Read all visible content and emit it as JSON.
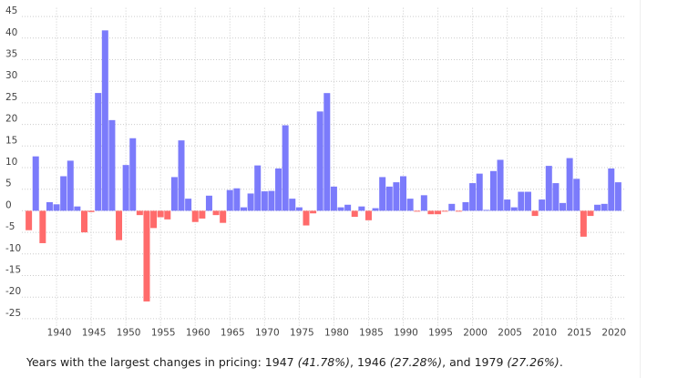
{
  "chart_data": {
    "type": "bar",
    "x": [
      1936,
      1937,
      1938,
      1939,
      1940,
      1941,
      1942,
      1943,
      1944,
      1945,
      1946,
      1947,
      1948,
      1949,
      1950,
      1951,
      1952,
      1953,
      1954,
      1955,
      1956,
      1957,
      1958,
      1959,
      1960,
      1961,
      1962,
      1963,
      1964,
      1965,
      1966,
      1967,
      1968,
      1969,
      1970,
      1971,
      1972,
      1973,
      1974,
      1975,
      1976,
      1977,
      1978,
      1979,
      1980,
      1981,
      1982,
      1983,
      1984,
      1985,
      1986,
      1987,
      1988,
      1989,
      1990,
      1991,
      1992,
      1993,
      1994,
      1995,
      1996,
      1997,
      1998,
      1999,
      2000,
      2001,
      2002,
      2003,
      2004,
      2005,
      2006,
      2007,
      2008,
      2009,
      2010,
      2011,
      2012,
      2013,
      2014,
      2015,
      2016,
      2017,
      2018,
      2019,
      2020,
      2021
    ],
    "values": [
      -4.5,
      12.6,
      -7.5,
      2,
      1.5,
      8,
      11.6,
      1,
      -5,
      -0.3,
      27.28,
      41.78,
      21,
      -6.8,
      10.6,
      16.8,
      -1,
      -21,
      -4,
      -1.5,
      -2,
      7.8,
      16.3,
      2.8,
      -2.6,
      -1.8,
      3.5,
      -1,
      -2.8,
      4.8,
      5.2,
      0.8,
      4,
      10.5,
      4.5,
      4.6,
      9.8,
      19.8,
      2.8,
      0.8,
      -3.4,
      -0.6,
      23,
      27.26,
      5.6,
      0.8,
      1.4,
      -1.4,
      1,
      -2.2,
      0.6,
      7.8,
      5.6,
      6.6,
      8,
      2.8,
      -0.2,
      3.6,
      -0.8,
      -0.8,
      -0.2,
      1.6,
      -0.2,
      2,
      6.4,
      8.6,
      0.2,
      9.2,
      11.8,
      2.6,
      0.8,
      4.4,
      4.4,
      -1.2,
      2.6,
      10.4,
      6.4,
      1.8,
      12.2,
      7.4,
      -6,
      -1.2,
      1.4,
      1.6,
      9.8,
      6.6
    ],
    "color": "#7b7bfb",
    "negative_color": "#ff6b6b",
    "xlim": [
      1935,
      2022
    ],
    "xticks": [
      1940,
      1945,
      1950,
      1955,
      1960,
      1965,
      1970,
      1975,
      1980,
      1985,
      1990,
      1995,
      2000,
      2005,
      2010,
      2015,
      2020
    ],
    "ylim": [
      -27,
      47
    ],
    "yticks": [
      45,
      40,
      35,
      30,
      25,
      20,
      15,
      10,
      5,
      0,
      -5,
      -10,
      -15,
      -20,
      -25
    ],
    "grid": true,
    "caption": [
      {
        "text": "Years with the largest changes in pricing: 1947 "
      },
      {
        "text": "(41.78%)",
        "italic": true
      },
      {
        "text": ", 1946 "
      },
      {
        "text": "(27.28%)",
        "italic": true
      },
      {
        "text": ", and 1979 "
      },
      {
        "text": "(27.26%)",
        "italic": true
      },
      {
        "text": "."
      }
    ]
  }
}
